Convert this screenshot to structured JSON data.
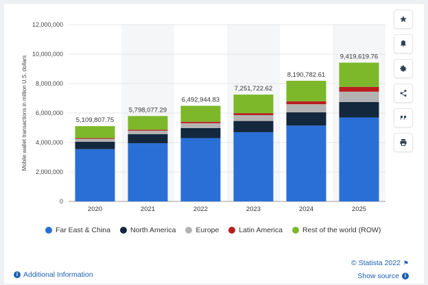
{
  "chart_data": {
    "type": "bar",
    "stacked": true,
    "categories": [
      "2020",
      "2021",
      "2022",
      "2023",
      "2024",
      "2025"
    ],
    "totals_labels": [
      "5,109,807.75",
      "5,798,077.29",
      "6,492,944.83",
      "7,251,722.62",
      "8,190,782.61",
      "9,419,619.76"
    ],
    "series": [
      {
        "name": "Far East & China",
        "color": "#2a6fd6",
        "values": [
          3550000,
          3950000,
          4300000,
          4700000,
          5150000,
          5700000
        ]
      },
      {
        "name": "North America",
        "color": "#13273d",
        "values": [
          500000,
          620000,
          680000,
          760000,
          900000,
          1050000
        ]
      },
      {
        "name": "Europe",
        "color": "#b3b3b3",
        "values": [
          200000,
          230000,
          330000,
          400000,
          550000,
          700000
        ]
      },
      {
        "name": "Latin America",
        "color": "#b81d1d",
        "values": [
          50000,
          70000,
          100000,
          130000,
          200000,
          330000
        ]
      },
      {
        "name": "Rest of the world (ROW)",
        "color": "#7cb82a",
        "values": [
          809807.75,
          928077.29,
          1082944.83,
          1261722.62,
          1390782.61,
          1639619.76
        ]
      }
    ],
    "ylabel": "Mobile wallet transactions in million U.S. dollars",
    "yticks": [
      "0",
      "2,000,000",
      "4,000,000",
      "6,000,000",
      "8,000,000",
      "10,000,000",
      "12,000,000"
    ],
    "ylim": [
      0,
      12000000
    ],
    "grid": true,
    "legend_position": "bottom"
  },
  "footer": {
    "additional_info": "Additional Information",
    "copyright": "© Statista 2022",
    "show_source": "Show source"
  },
  "sidebar": {
    "icons": [
      "star-icon",
      "bell-icon",
      "gear-icon",
      "share-icon",
      "quote-icon",
      "print-icon"
    ]
  }
}
